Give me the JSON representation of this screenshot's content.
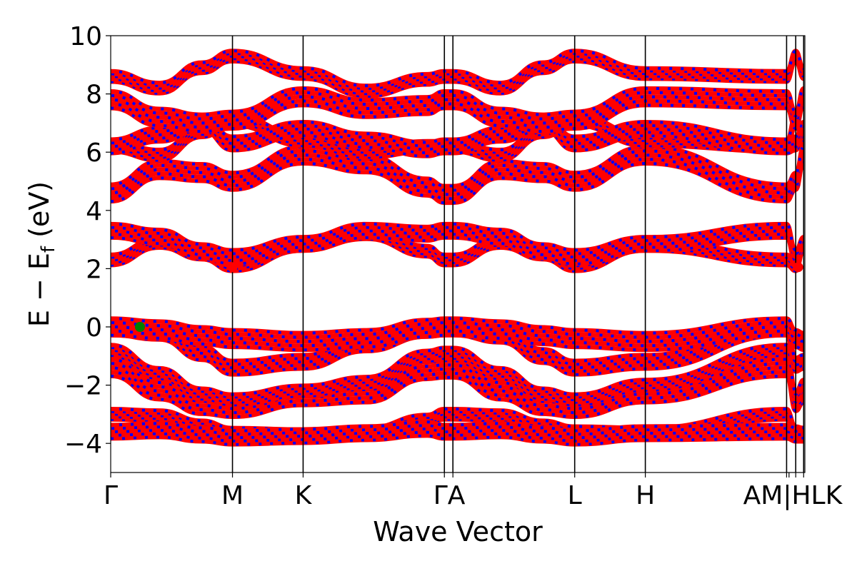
{
  "chart_data": {
    "type": "line",
    "title": "",
    "xlabel": "Wave Vector",
    "ylabel": "E − E",
    "ylabel_sub": "f",
    "ylabel_unit": " (eV)",
    "ylim": [
      -5,
      10
    ],
    "yticks": [
      -4,
      -2,
      0,
      2,
      4,
      6,
      8,
      10
    ],
    "ytick_labels": [
      "−4",
      "−2",
      "0",
      "2",
      "4",
      "6",
      "8",
      "10"
    ],
    "xlim": [
      0,
      5.7
    ],
    "kpoints": [
      {
        "label": "Γ",
        "x": 0.0
      },
      {
        "label": "M",
        "x": 1.0
      },
      {
        "label": "K",
        "x": 1.58
      },
      {
        "label": "Γ",
        "x": 2.74
      },
      {
        "label": "A",
        "x": 2.81
      },
      {
        "label": "L",
        "x": 3.81
      },
      {
        "label": "H",
        "x": 4.39
      },
      {
        "label": "A",
        "x": 5.55
      },
      {
        "label": "L",
        "x": 5.625
      },
      {
        "label": "M",
        "x": 5.57
      },
      {
        "label": "K",
        "x": 5.69
      }
    ],
    "tick_text": [
      {
        "label": "Γ",
        "x": 0.0
      },
      {
        "label": "M",
        "x": 1.0
      },
      {
        "label": "K",
        "x": 1.58
      },
      {
        "label": "ΓA",
        "x": 2.78
      },
      {
        "label": "L",
        "x": 3.81
      },
      {
        "label": "H",
        "x": 4.39
      },
      {
        "label": "AM|HLK",
        "x": 5.6
      }
    ],
    "vlines": [
      1.0,
      1.58,
      2.74,
      2.81,
      3.81,
      4.39,
      5.55,
      5.625,
      5.69
    ],
    "band_colors": [
      "#ff0000",
      "#0000ff"
    ],
    "bands": [
      {
        "name": "",
        "values": [
          -3.0,
          -3.05,
          -3.4,
          -3.65,
          -3.7,
          -3.65,
          -3.2,
          -3.0,
          -3.0,
          -3.05,
          -3.4,
          -3.6,
          -3.65,
          -3.0,
          -3.6,
          -3.65
        ]
      },
      {
        "name": "",
        "values": [
          -3.6,
          -3.55,
          -3.7,
          -3.8,
          -3.75,
          -3.65,
          -3.5,
          -3.6,
          -3.6,
          -3.55,
          -3.7,
          -3.8,
          -3.65,
          -3.6,
          -3.7,
          -3.7
        ]
      },
      {
        "name": "",
        "values": [
          -1.4,
          -2.2,
          -2.7,
          -2.8,
          -2.4,
          -2.3,
          -1.5,
          -1.45,
          -1.45,
          -2.2,
          -2.7,
          -2.8,
          -2.3,
          -1.4,
          -2.6,
          -2.3
        ]
      },
      {
        "name": "",
        "values": [
          -0.8,
          -1.6,
          -2.3,
          -2.5,
          -2.2,
          -1.9,
          -1.0,
          -0.9,
          -0.9,
          -1.6,
          -2.3,
          -2.5,
          -2.0,
          -0.8,
          -2.4,
          -2.0
        ]
      },
      {
        "name": "",
        "values": [
          -0.05,
          -0.2,
          -0.9,
          -1.4,
          -1.2,
          -0.6,
          -0.1,
          -0.05,
          -0.05,
          -0.3,
          -1.0,
          -1.4,
          -1.2,
          -0.05,
          -1.3,
          -1.2
        ]
      },
      {
        "name": "",
        "values": [
          0.0,
          -0.1,
          -0.3,
          -0.4,
          -0.5,
          -0.4,
          -0.05,
          0.0,
          0.0,
          -0.1,
          -0.3,
          -0.4,
          -0.5,
          0.0,
          -0.4,
          -0.5
        ]
      },
      {
        "name": "",
        "values": [
          2.3,
          2.9,
          2.5,
          2.1,
          2.8,
          3.2,
          2.6,
          2.3,
          2.3,
          2.9,
          2.5,
          2.1,
          2.8,
          2.3,
          2.1,
          2.8
        ]
      },
      {
        "name": "",
        "values": [
          3.3,
          3.1,
          2.6,
          2.4,
          2.85,
          3.3,
          3.2,
          3.3,
          3.3,
          3.1,
          2.6,
          2.4,
          2.85,
          3.3,
          2.4,
          2.85
        ]
      },
      {
        "name": "",
        "values": [
          4.6,
          5.4,
          5.3,
          5.0,
          5.9,
          5.6,
          4.8,
          4.55,
          4.55,
          5.4,
          5.3,
          5.0,
          5.9,
          4.6,
          5.0,
          5.9
        ]
      },
      {
        "name": "",
        "values": [
          6.2,
          5.9,
          6.7,
          7.1,
          6.4,
          6.0,
          6.2,
          6.2,
          6.2,
          5.9,
          6.7,
          7.1,
          6.4,
          6.2,
          7.1,
          6.4
        ]
      },
      {
        "name": "",
        "values": [
          6.2,
          6.6,
          7.0,
          6.3,
          6.8,
          6.4,
          6.1,
          6.2,
          6.2,
          6.6,
          7.0,
          6.3,
          6.8,
          6.2,
          6.3,
          6.8
        ]
      },
      {
        "name": "",
        "values": [
          7.8,
          7.2,
          7.0,
          7.1,
          7.9,
          7.5,
          7.6,
          7.8,
          7.8,
          7.2,
          7.0,
          7.1,
          7.9,
          7.8,
          7.1,
          7.9
        ]
      },
      {
        "name": "",
        "values": [
          8.6,
          8.2,
          8.9,
          9.3,
          8.7,
          8.1,
          8.5,
          8.6,
          8.6,
          8.2,
          8.9,
          9.3,
          8.7,
          8.6,
          9.3,
          8.7
        ]
      }
    ],
    "band_x": [
      0.0,
      0.4,
      0.75,
      1.0,
      1.58,
      2.1,
      2.6,
      2.74,
      2.81,
      3.2,
      3.55,
      3.81,
      4.39,
      5.55,
      5.625,
      5.69
    ],
    "markers": [
      {
        "x": 0.24,
        "y": 0.0,
        "color": "#008000"
      },
      {
        "x": 1.0,
        "y": 2.05,
        "color": "#ff0000"
      },
      {
        "x": 5.645,
        "y": 2.05,
        "color": "#ff0000"
      }
    ]
  }
}
